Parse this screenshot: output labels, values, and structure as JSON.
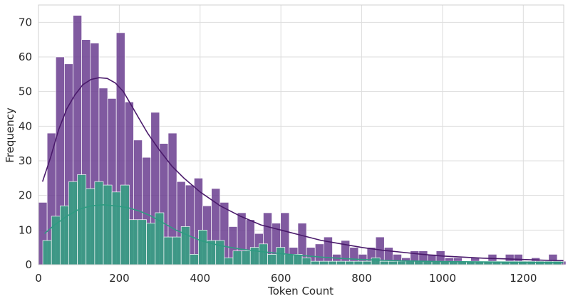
{
  "chart_data": {
    "type": "histogram",
    "xlabel": "Token Count",
    "ylabel": "Frequency",
    "xlim": [
      0,
      1300
    ],
    "ylim": [
      0,
      75
    ],
    "grid": true,
    "legend": "none",
    "x_ticks": [
      0,
      200,
      400,
      600,
      800,
      1000,
      1200
    ],
    "y_ticks": [
      0,
      10,
      20,
      30,
      40,
      50,
      60,
      70
    ],
    "bin_width": 21.4,
    "series": [
      {
        "color": "#6a3d8f",
        "kde_color": "#4a1a6b",
        "bins": [
          [
            10.7,
            18
          ],
          [
            32.1,
            38
          ],
          [
            53.5,
            60
          ],
          [
            74.9,
            58
          ],
          [
            96.3,
            72
          ],
          [
            117.7,
            65
          ],
          [
            139.1,
            64
          ],
          [
            160.5,
            51
          ],
          [
            181.9,
            48
          ],
          [
            203.3,
            67
          ],
          [
            224.7,
            47
          ],
          [
            246.1,
            36
          ],
          [
            267.5,
            31
          ],
          [
            288.9,
            44
          ],
          [
            310.3,
            35
          ],
          [
            331.7,
            38
          ],
          [
            353.1,
            24
          ],
          [
            374.5,
            23
          ],
          [
            395.9,
            25
          ],
          [
            417.3,
            17
          ],
          [
            438.7,
            22
          ],
          [
            460.1,
            18
          ],
          [
            481.5,
            11
          ],
          [
            502.9,
            15
          ],
          [
            524.3,
            13
          ],
          [
            545.7,
            9
          ],
          [
            567.1,
            15
          ],
          [
            588.5,
            12
          ],
          [
            609.9,
            15
          ],
          [
            631.3,
            5
          ],
          [
            652.7,
            12
          ],
          [
            674.1,
            5
          ],
          [
            695.5,
            6
          ],
          [
            716.9,
            8
          ],
          [
            738.3,
            3
          ],
          [
            759.7,
            7
          ],
          [
            781.1,
            5
          ],
          [
            802.5,
            3
          ],
          [
            823.9,
            5
          ],
          [
            845.3,
            8
          ],
          [
            866.7,
            5
          ],
          [
            888.1,
            3
          ],
          [
            909.5,
            2
          ],
          [
            930.9,
            4
          ],
          [
            952.3,
            4
          ],
          [
            973.7,
            3
          ],
          [
            995.1,
            4
          ],
          [
            1016.5,
            2
          ],
          [
            1037.9,
            2
          ],
          [
            1059.3,
            1
          ],
          [
            1080.7,
            2
          ],
          [
            1102.1,
            1
          ],
          [
            1123.5,
            3
          ],
          [
            1144.9,
            1
          ],
          [
            1166.3,
            3
          ],
          [
            1187.7,
            3
          ],
          [
            1209.1,
            1
          ],
          [
            1230.5,
            2
          ],
          [
            1251.9,
            1
          ],
          [
            1273.3,
            3
          ],
          [
            1294.7,
            1
          ]
        ],
        "kde": [
          [
            10,
            24
          ],
          [
            30,
            31
          ],
          [
            50,
            39
          ],
          [
            70,
            45
          ],
          [
            90,
            49
          ],
          [
            110,
            52
          ],
          [
            130,
            53.5
          ],
          [
            150,
            54
          ],
          [
            170,
            53.8
          ],
          [
            190,
            52.5
          ],
          [
            210,
            50
          ],
          [
            230,
            46
          ],
          [
            250,
            42
          ],
          [
            270,
            38
          ],
          [
            300,
            33
          ],
          [
            330,
            28.5
          ],
          [
            360,
            25
          ],
          [
            400,
            21
          ],
          [
            450,
            17
          ],
          [
            500,
            14
          ],
          [
            550,
            11.5
          ],
          [
            600,
            10
          ],
          [
            650,
            8.5
          ],
          [
            700,
            7
          ],
          [
            750,
            6
          ],
          [
            800,
            5
          ],
          [
            850,
            4.2
          ],
          [
            900,
            3.6
          ],
          [
            950,
            3
          ],
          [
            1000,
            2.5
          ],
          [
            1050,
            2.2
          ],
          [
            1100,
            1.9
          ],
          [
            1150,
            1.7
          ],
          [
            1200,
            1.5
          ],
          [
            1250,
            1.3
          ],
          [
            1300,
            1.2
          ]
        ]
      },
      {
        "color": "#3a9b85",
        "kde_color": "#2e9c82",
        "bins": [
          [
            21.4,
            7
          ],
          [
            42.8,
            14
          ],
          [
            64.2,
            17
          ],
          [
            85.6,
            24
          ],
          [
            107.0,
            26
          ],
          [
            128.4,
            22
          ],
          [
            149.8,
            24
          ],
          [
            171.2,
            23
          ],
          [
            192.6,
            21
          ],
          [
            214.0,
            23
          ],
          [
            235.4,
            13
          ],
          [
            256.8,
            13
          ],
          [
            278.2,
            12
          ],
          [
            299.6,
            15
          ],
          [
            321.0,
            8
          ],
          [
            342.4,
            8
          ],
          [
            363.8,
            11
          ],
          [
            385.2,
            3
          ],
          [
            406.6,
            10
          ],
          [
            428.0,
            7
          ],
          [
            449.4,
            7
          ],
          [
            470.8,
            2
          ],
          [
            492.2,
            4
          ],
          [
            513.6,
            4
          ],
          [
            535.0,
            5
          ],
          [
            556.4,
            6
          ],
          [
            577.8,
            3
          ],
          [
            599.2,
            5
          ],
          [
            620.6,
            3
          ],
          [
            642.0,
            3
          ],
          [
            663.4,
            2
          ],
          [
            684.8,
            1
          ],
          [
            706.2,
            1
          ],
          [
            727.6,
            1
          ],
          [
            749.0,
            1
          ],
          [
            770.4,
            1
          ],
          [
            791.8,
            1
          ],
          [
            813.2,
            1
          ],
          [
            834.6,
            2
          ],
          [
            856.0,
            1
          ],
          [
            877.4,
            1
          ],
          [
            898.8,
            1
          ],
          [
            920.2,
            1
          ],
          [
            941.6,
            1
          ],
          [
            963.0,
            1
          ],
          [
            984.4,
            1
          ],
          [
            1005.8,
            1
          ],
          [
            1027.2,
            1
          ],
          [
            1048.6,
            1
          ],
          [
            1070.0,
            1
          ],
          [
            1091.4,
            1
          ],
          [
            1112.8,
            1
          ],
          [
            1134.2,
            1
          ],
          [
            1155.6,
            1
          ],
          [
            1177.0,
            1
          ],
          [
            1198.4,
            1
          ],
          [
            1219.8,
            1
          ],
          [
            1241.2,
            1
          ],
          [
            1262.6,
            1
          ],
          [
            1284.0,
            1
          ]
        ],
        "kde": [
          [
            15,
            9
          ],
          [
            40,
            11.5
          ],
          [
            70,
            14
          ],
          [
            100,
            16
          ],
          [
            130,
            17
          ],
          [
            160,
            17.3
          ],
          [
            190,
            17
          ],
          [
            220,
            16.5
          ],
          [
            250,
            15.5
          ],
          [
            280,
            14
          ],
          [
            310,
            12
          ],
          [
            340,
            10
          ],
          [
            370,
            8.5
          ],
          [
            400,
            7
          ],
          [
            450,
            5.5
          ],
          [
            500,
            4.5
          ],
          [
            550,
            3.8
          ],
          [
            600,
            3.2
          ],
          [
            650,
            2.7
          ],
          [
            700,
            2.2
          ],
          [
            750,
            1.8
          ],
          [
            800,
            1.5
          ],
          [
            850,
            1.3
          ],
          [
            900,
            1.1
          ],
          [
            950,
            1.0
          ],
          [
            1000,
            0.9
          ],
          [
            1100,
            0.8
          ],
          [
            1200,
            0.7
          ],
          [
            1300,
            0.6
          ]
        ]
      }
    ]
  }
}
